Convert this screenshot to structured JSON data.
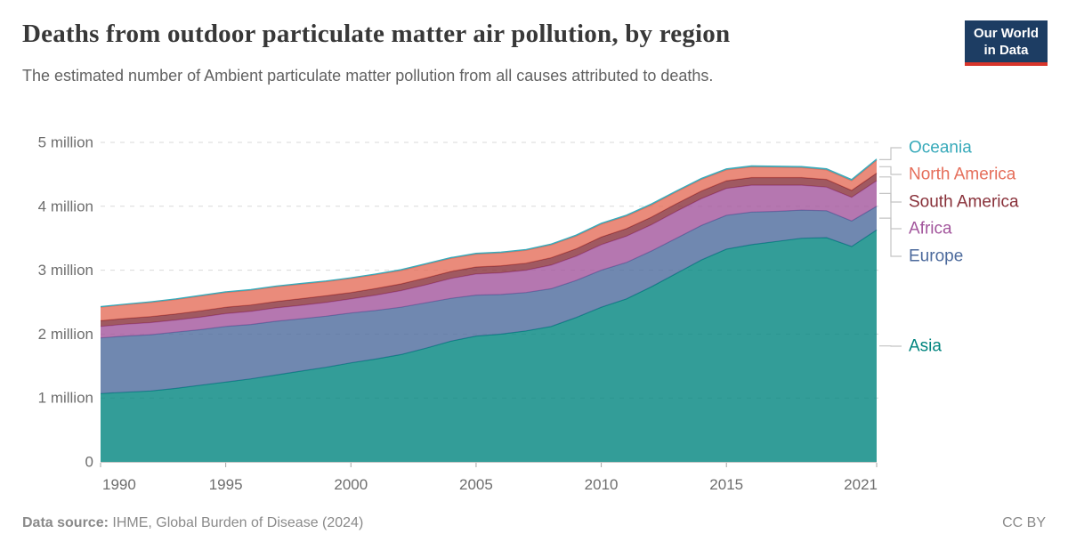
{
  "header": {
    "title": "Deaths from outdoor particulate matter air pollution, by region",
    "subtitle": "The estimated number of Ambient particulate matter pollution from all causes attributed to deaths.",
    "logo_line1": "Our World",
    "logo_line2": "in Data"
  },
  "footer": {
    "source_label": "Data source:",
    "source_text": " IHME, Global Burden of Disease (2024)",
    "license": "CC BY"
  },
  "colors": {
    "logo_background": "#1d3d63",
    "logo_bar": "#d8352b",
    "gridline": "#dadada",
    "axis_line": "#c8c8c8",
    "tick_text": "#6e6e6e",
    "legend_connector": "#c4c4c4"
  },
  "chart_data": {
    "type": "area",
    "stacked": true,
    "title": "Deaths from outdoor particulate matter air pollution, by region",
    "xlabel": "",
    "ylabel": "",
    "ylim": [
      0,
      5000000
    ],
    "grid": "dashed-horizontal",
    "legend_position": "right",
    "x": [
      1990,
      1991,
      1992,
      1993,
      1994,
      1995,
      1996,
      1997,
      1998,
      1999,
      2000,
      2001,
      2002,
      2003,
      2004,
      2005,
      2006,
      2007,
      2008,
      2009,
      2010,
      2011,
      2012,
      2013,
      2014,
      2015,
      2016,
      2017,
      2018,
      2019,
      2020,
      2021
    ],
    "xticks": [
      1990,
      1995,
      2000,
      2005,
      2010,
      2015,
      2021
    ],
    "yticks": [
      {
        "value": 0,
        "label": "0"
      },
      {
        "value": 1000000,
        "label": "1 million"
      },
      {
        "value": 2000000,
        "label": "2 million"
      },
      {
        "value": 3000000,
        "label": "3 million"
      },
      {
        "value": 4000000,
        "label": "4 million"
      },
      {
        "value": 5000000,
        "label": "5 million"
      }
    ],
    "series": [
      {
        "name": "Asia",
        "color": "#00847E",
        "values": [
          1070000,
          1090000,
          1110000,
          1150000,
          1200000,
          1250000,
          1300000,
          1360000,
          1420000,
          1480000,
          1550000,
          1610000,
          1680000,
          1780000,
          1890000,
          1970000,
          2000000,
          2050000,
          2120000,
          2260000,
          2420000,
          2550000,
          2740000,
          2950000,
          3160000,
          3330000,
          3400000,
          3450000,
          3500000,
          3510000,
          3370000,
          3630000
        ]
      },
      {
        "name": "Europe",
        "color": "#4C6A9C",
        "values": [
          870000,
          880000,
          880000,
          880000,
          870000,
          870000,
          850000,
          840000,
          820000,
          800000,
          780000,
          760000,
          740000,
          710000,
          670000,
          640000,
          620000,
          600000,
          590000,
          580000,
          580000,
          570000,
          560000,
          550000,
          540000,
          530000,
          510000,
          470000,
          440000,
          420000,
          400000,
          370000
        ]
      },
      {
        "name": "Africa",
        "color": "#A2559C",
        "values": [
          180000,
          185000,
          190000,
          190000,
          195000,
          200000,
          205000,
          210000,
          210000,
          215000,
          220000,
          240000,
          260000,
          280000,
          310000,
          330000,
          340000,
          350000,
          370000,
          380000,
          400000,
          410000,
          410000,
          420000,
          420000,
          420000,
          420000,
          410000,
          390000,
          370000,
          370000,
          400000
        ]
      },
      {
        "name": "South America",
        "color": "#883039",
        "values": [
          90000,
          90000,
          95000,
          95000,
          100000,
          100000,
          100000,
          100000,
          105000,
          105000,
          100000,
          105000,
          105000,
          110000,
          110000,
          110000,
          110000,
          110000,
          115000,
          115000,
          120000,
          120000,
          120000,
          120000,
          120000,
          120000,
          120000,
          120000,
          120000,
          120000,
          110000,
          120000
        ]
      },
      {
        "name": "North America",
        "color": "#E56E5A",
        "values": [
          210000,
          215000,
          220000,
          225000,
          230000,
          230000,
          230000,
          230000,
          225000,
          220000,
          220000,
          215000,
          210000,
          210000,
          205000,
          200000,
          200000,
          200000,
          200000,
          200000,
          200000,
          195000,
          190000,
          185000,
          180000,
          170000,
          165000,
          160000,
          155000,
          150000,
          150000,
          200000
        ]
      },
      {
        "name": "Oceania",
        "color": "#38AABA",
        "values": [
          10000,
          10000,
          10000,
          10000,
          11000,
          11000,
          11000,
          11000,
          12000,
          12000,
          12000,
          12000,
          13000,
          13000,
          13000,
          14000,
          14000,
          14000,
          15000,
          15000,
          15000,
          16000,
          16000,
          16000,
          17000,
          17000,
          17000,
          18000,
          18000,
          18000,
          19000,
          20000
        ]
      }
    ],
    "legend": [
      {
        "label": "Oceania",
        "y": 166
      },
      {
        "label": "North America",
        "y": 196
      },
      {
        "label": "South America",
        "y": 227
      },
      {
        "label": "Africa",
        "y": 257
      },
      {
        "label": "Europe",
        "y": 288
      },
      {
        "label": "Asia",
        "y": 389
      }
    ]
  }
}
